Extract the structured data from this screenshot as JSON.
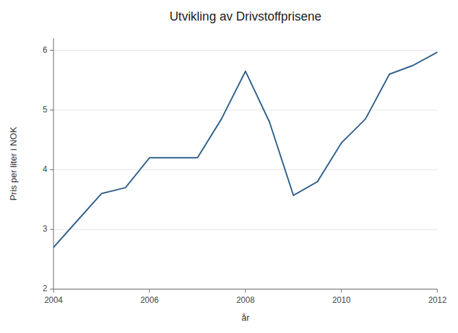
{
  "chart_data": {
    "type": "line",
    "title": "Utvikling av Drivstoffprisene",
    "xlabel": "år",
    "ylabel": "Pris per liter i NOK",
    "x": [
      2004,
      2004.5,
      2005,
      2005.5,
      2006,
      2006.5,
      2007,
      2007.5,
      2008,
      2008.5,
      2009,
      2009.5,
      2010,
      2010.5,
      2011,
      2011.5,
      2012
    ],
    "values": [
      2.7,
      3.15,
      3.6,
      3.7,
      4.2,
      4.2,
      4.2,
      4.85,
      5.65,
      4.8,
      3.57,
      3.8,
      4.45,
      4.85,
      5.6,
      5.75,
      5.97
    ],
    "color": "#2e5f8a",
    "xlim": [
      2004,
      2012
    ],
    "ylim": [
      2.0,
      6.2
    ],
    "xticks": [
      2004,
      2006,
      2008,
      2010,
      2012
    ],
    "yticks": [
      2,
      3,
      4,
      5,
      6
    ],
    "grid": true
  }
}
